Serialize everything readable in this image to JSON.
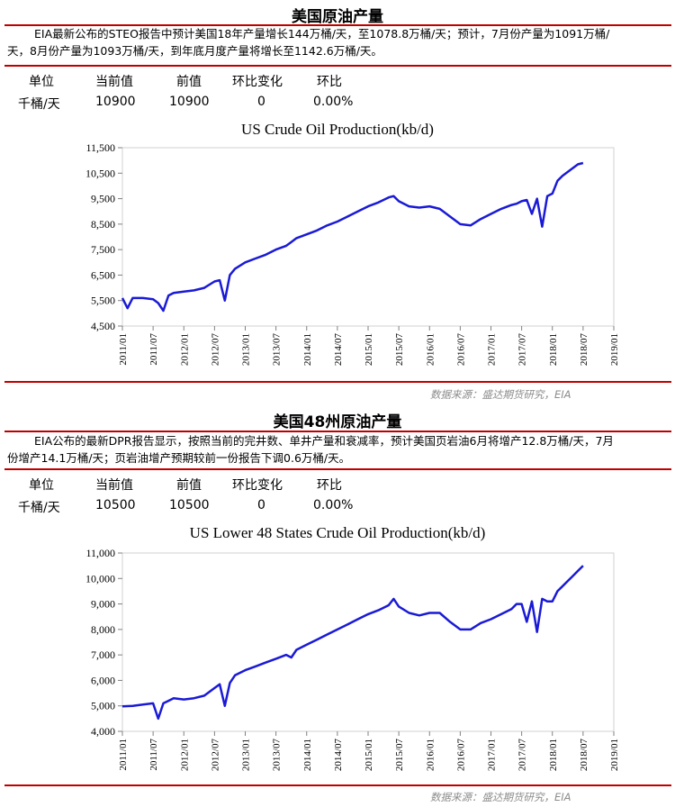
{
  "section1": {
    "title": "美国原油产量",
    "desc_line1": "EIA最新公布的STEO报告中预计美国18年产量增长144万桶/天，至1078.8万桶/天；预计，7月份产量为1091万桶/",
    "desc_line2": "天，8月份产量为1093万桶/天，到年底月度产量将增长至1142.6万桶/天。",
    "headers": [
      "单位",
      "当前值",
      "前值",
      "环比变化",
      "环比"
    ],
    "values": [
      "千桶/天",
      "10900",
      "10900",
      "0",
      "0.00%"
    ],
    "source": "数据来源：盛达期货研究，EIA"
  },
  "section2": {
    "title": "美国48州原油产量",
    "desc_line1": "EIA公布的最新DPR报告显示，按照当前的完井数、单井产量和衰减率，预计美国页岩油6月将增产12.8万桶/天，7月",
    "desc_line2": "份增产14.1万桶/天；页岩油增产预期较前一份报告下调0.6万桶/天。",
    "headers": [
      "单位",
      "当前值",
      "前值",
      "环比变化",
      "环比"
    ],
    "values": [
      "千桶/天",
      "10500",
      "10500",
      "0",
      "0.00%"
    ],
    "source": "数据来源：盛达期货研究，EIA"
  },
  "chart_data": [
    {
      "type": "line",
      "title": "US Crude Oil Production(kb/d)",
      "color": "#1a1ad6",
      "ylim": [
        4500,
        11500
      ],
      "yticks": [
        4500,
        5500,
        6500,
        7500,
        8500,
        9500,
        10500,
        11500
      ],
      "ytick_labels": [
        "4,500",
        "5,500",
        "6,500",
        "7,500",
        "8,500",
        "9,500",
        "10,500",
        "11,500"
      ],
      "xticks": [
        "2011/01",
        "2011/07",
        "2012/01",
        "2012/07",
        "2013/01",
        "2013/07",
        "2014/01",
        "2014/07",
        "2015/01",
        "2015/07",
        "2016/01",
        "2016/07",
        "2017/01",
        "2017/07",
        "2018/01",
        "2018/07",
        "2019/01"
      ],
      "grid": false,
      "series": [
        {
          "x": [
            "2011/01",
            "2011/02",
            "2011/03",
            "2011/05",
            "2011/07",
            "2011/08",
            "2011/09",
            "2011/10",
            "2011/11",
            "2012/01",
            "2012/03",
            "2012/05",
            "2012/07",
            "2012/08",
            "2012/09",
            "2012/10",
            "2012/11",
            "2013/01",
            "2013/03",
            "2013/05",
            "2013/07",
            "2013/09",
            "2013/10",
            "2013/11",
            "2014/01",
            "2014/03",
            "2014/05",
            "2014/07",
            "2014/09",
            "2014/11",
            "2015/01",
            "2015/03",
            "2015/05",
            "2015/06",
            "2015/07",
            "2015/09",
            "2015/11",
            "2016/01",
            "2016/03",
            "2016/05",
            "2016/07",
            "2016/09",
            "2016/11",
            "2017/01",
            "2017/03",
            "2017/05",
            "2017/06",
            "2017/07",
            "2017/08",
            "2017/09",
            "2017/10",
            "2017/11",
            "2017/12",
            "2018/01",
            "2018/02",
            "2018/03",
            "2018/04",
            "2018/05",
            "2018/06",
            "2018/07"
          ],
          "y": [
            5600,
            5200,
            5600,
            5600,
            5550,
            5400,
            5100,
            5700,
            5800,
            5850,
            5900,
            6000,
            6250,
            6300,
            5500,
            6500,
            6750,
            7000,
            7150,
            7300,
            7500,
            7650,
            7800,
            7950,
            8100,
            8250,
            8450,
            8600,
            8800,
            9000,
            9200,
            9350,
            9550,
            9600,
            9400,
            9200,
            9150,
            9200,
            9100,
            8800,
            8500,
            8450,
            8700,
            8900,
            9100,
            9250,
            9300,
            9400,
            9450,
            8900,
            9500,
            8400,
            9600,
            9700,
            10200,
            10400,
            10550,
            10700,
            10850,
            10900
          ]
        }
      ]
    },
    {
      "type": "line",
      "title": "US Lower 48 States Crude Oil Production(kb/d)",
      "color": "#1a1ad6",
      "ylim": [
        4000,
        11000
      ],
      "yticks": [
        4000,
        5000,
        6000,
        7000,
        8000,
        9000,
        10000,
        11000
      ],
      "ytick_labels": [
        "4,000",
        "5,000",
        "6,000",
        "7,000",
        "8,000",
        "9,000",
        "10,000",
        "11,000"
      ],
      "xticks": [
        "2011/01",
        "2011/07",
        "2012/01",
        "2012/07",
        "2013/01",
        "2013/07",
        "2014/01",
        "2014/07",
        "2015/01",
        "2015/07",
        "2016/01",
        "2016/07",
        "2017/01",
        "2017/07",
        "2018/01",
        "2018/07",
        "2019/01"
      ],
      "grid": false,
      "series": [
        {
          "x": [
            "2011/01",
            "2011/03",
            "2011/05",
            "2011/07",
            "2011/08",
            "2011/09",
            "2011/10",
            "2011/11",
            "2012/01",
            "2012/03",
            "2012/05",
            "2012/07",
            "2012/08",
            "2012/09",
            "2012/10",
            "2012/11",
            "2013/01",
            "2013/03",
            "2013/05",
            "2013/07",
            "2013/09",
            "2013/10",
            "2013/11",
            "2014/01",
            "2014/03",
            "2014/05",
            "2014/07",
            "2014/09",
            "2014/11",
            "2015/01",
            "2015/03",
            "2015/05",
            "2015/06",
            "2015/07",
            "2015/09",
            "2015/11",
            "2016/01",
            "2016/03",
            "2016/05",
            "2016/07",
            "2016/09",
            "2016/11",
            "2017/01",
            "2017/03",
            "2017/05",
            "2017/06",
            "2017/07",
            "2017/08",
            "2017/09",
            "2017/10",
            "2017/11",
            "2017/12",
            "2018/01",
            "2018/02",
            "2018/03",
            "2018/04",
            "2018/05",
            "2018/06",
            "2018/07"
          ],
          "y": [
            4980,
            5000,
            5050,
            5100,
            4500,
            5100,
            5200,
            5300,
            5250,
            5300,
            5400,
            5700,
            5850,
            5000,
            5900,
            6200,
            6400,
            6550,
            6700,
            6850,
            7000,
            6900,
            7200,
            7400,
            7600,
            7800,
            8000,
            8200,
            8400,
            8600,
            8750,
            8950,
            9200,
            8900,
            8650,
            8550,
            8650,
            8650,
            8300,
            8000,
            8000,
            8250,
            8400,
            8600,
            8800,
            9000,
            9000,
            8300,
            9100,
            7900,
            9200,
            9100,
            9100,
            9500,
            9700,
            9900,
            10100,
            10300,
            10500
          ]
        }
      ]
    }
  ]
}
